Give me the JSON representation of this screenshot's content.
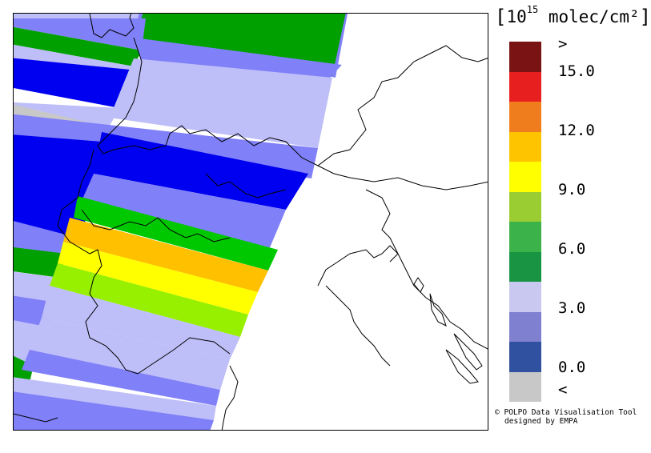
{
  "legend": {
    "title_prefix": "[10",
    "title_exponent": "15",
    "title_suffix": " molec/cm²",
    "bracket_close": "]",
    "colors": [
      "#7a1414",
      "#e81f1f",
      "#ef7d1e",
      "#ffc400",
      "#ffff00",
      "#9acd32",
      "#3cb34a",
      "#189443",
      "#c8c8f0",
      "#8080d0",
      "#3050a0",
      "#c8c8c8"
    ],
    "tick_labels": [
      ">",
      "15.0",
      "12.0",
      "9.0",
      "6.0",
      "3.0",
      "0.0",
      "<"
    ]
  },
  "credit": {
    "icon": "copyright-icon",
    "icon_glyph": "©",
    "line1": "POLPO Data Visualisation Tool",
    "line2": "designed by EMPA"
  },
  "map_data": {
    "description_colors": {
      "light_lavender": "#bebef8",
      "medium_blue": "#8080f8",
      "blue": "#0000f0",
      "green": "#00a000",
      "bright_green": "#00c800",
      "orange": "#ffc000",
      "yellow": "#ffff00",
      "yellow_green": "#96f000",
      "grey": "#c8c8c8",
      "coast": "#000000"
    }
  }
}
